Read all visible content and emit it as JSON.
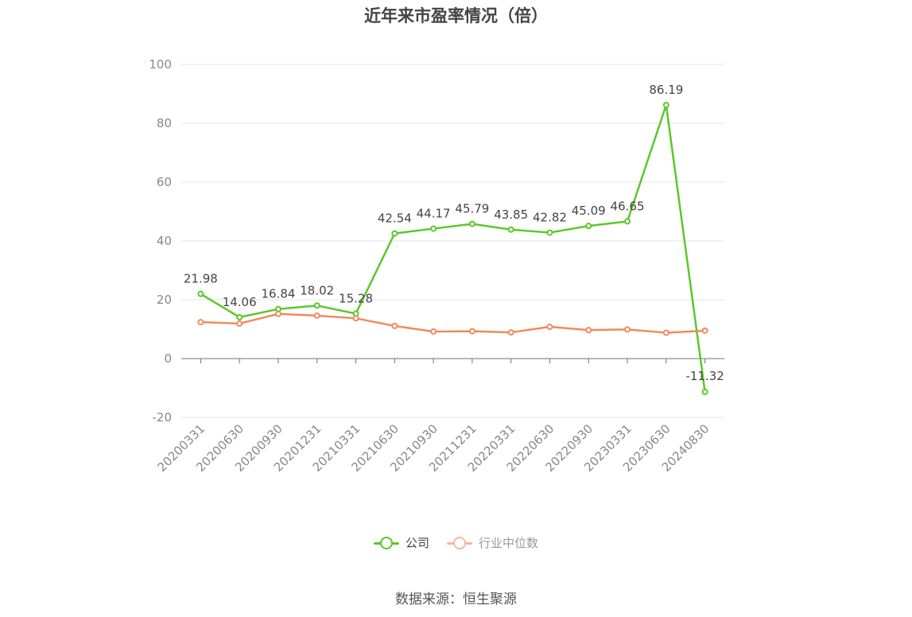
{
  "title": "近年来市盈率情况（倍）",
  "source": "数据来源：恒生聚源",
  "colors": {
    "company": "#5ac829",
    "industry": "#f08a5d",
    "industry_legend": "#f7b7a1",
    "grid": "#e3e6ef",
    "axis_text": "#888888",
    "label_text": "#444444"
  },
  "chart_data": {
    "type": "line",
    "categories": [
      "20200331",
      "20200630",
      "20200930",
      "20201231",
      "20210331",
      "20210630",
      "20210930",
      "20211231",
      "20220331",
      "20220630",
      "20220930",
      "20230331",
      "20230630",
      "20240830"
    ],
    "series": [
      {
        "name": "公司",
        "values": [
          21.98,
          14.06,
          16.84,
          18.02,
          15.28,
          42.54,
          44.17,
          45.79,
          43.85,
          42.82,
          45.09,
          46.65,
          86.19,
          -11.32
        ],
        "labels": [
          "21.98",
          "14.06",
          "16.84",
          "18.02",
          "15.28",
          "42.54",
          "44.17",
          "45.79",
          "43.85",
          "42.82",
          "45.09",
          "46.65",
          "86.19",
          "-11.32"
        ]
      },
      {
        "name": "行业中位数",
        "values": [
          12.4,
          11.9,
          15.2,
          14.6,
          13.7,
          11.1,
          9.2,
          9.3,
          8.9,
          10.8,
          9.7,
          9.9,
          8.8,
          9.5
        ]
      }
    ],
    "ylim": [
      -20,
      100
    ],
    "yticks": [
      -20,
      0,
      20,
      40,
      60,
      80,
      100
    ],
    "ytick_labels": [
      "-20",
      "0",
      "20",
      "40",
      "60",
      "80",
      "100"
    ],
    "grid": true,
    "legend_position": "bottom-center"
  }
}
